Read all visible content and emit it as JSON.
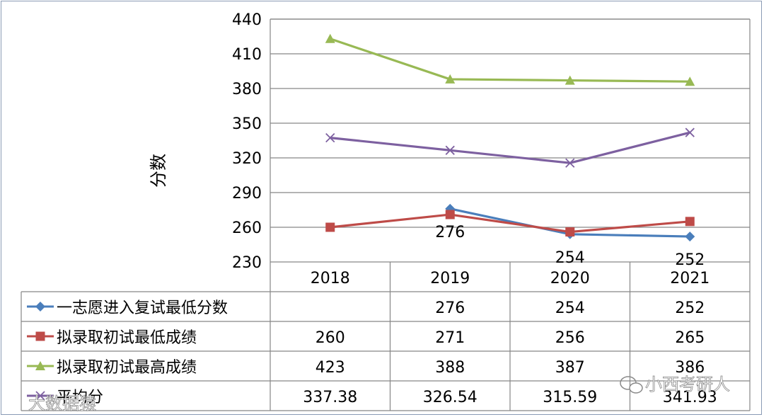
{
  "chart_data": {
    "type": "line",
    "categories": [
      "2018",
      "2019",
      "2020",
      "2021"
    ],
    "ylabel": "分数",
    "ylim": [
      230,
      440
    ],
    "yticks": [
      230,
      260,
      290,
      320,
      350,
      380,
      410,
      440
    ],
    "grid": true,
    "legend": "table-left",
    "series": [
      {
        "name": "一志愿进入复试最低分数",
        "values": [
          null,
          276,
          254,
          252
        ],
        "display": [
          "",
          "276",
          "254",
          "252"
        ],
        "color": "#4a7ebb",
        "marker": "diamond",
        "labeled": true
      },
      {
        "name": "拟录取初试最低成绩",
        "values": [
          260,
          271,
          256,
          265
        ],
        "display": [
          "260",
          "271",
          "256",
          "265"
        ],
        "color": "#be4b48",
        "marker": "square",
        "labeled": false
      },
      {
        "name": "拟录取初试最高成绩",
        "values": [
          423,
          388,
          387,
          386
        ],
        "display": [
          "423",
          "388",
          "387",
          "386"
        ],
        "color": "#98b954",
        "marker": "triangle",
        "labeled": false
      },
      {
        "name": "平均分",
        "values": [
          337.38,
          326.54,
          315.59,
          341.93
        ],
        "display": [
          "337.38",
          "326.54",
          "315.59",
          "341.93"
        ],
        "color": "#7d60a0",
        "marker": "x",
        "labeled": false
      }
    ]
  },
  "watermarks": {
    "bottom_left": "大数据猿",
    "bottom_right": "小西考研人"
  }
}
